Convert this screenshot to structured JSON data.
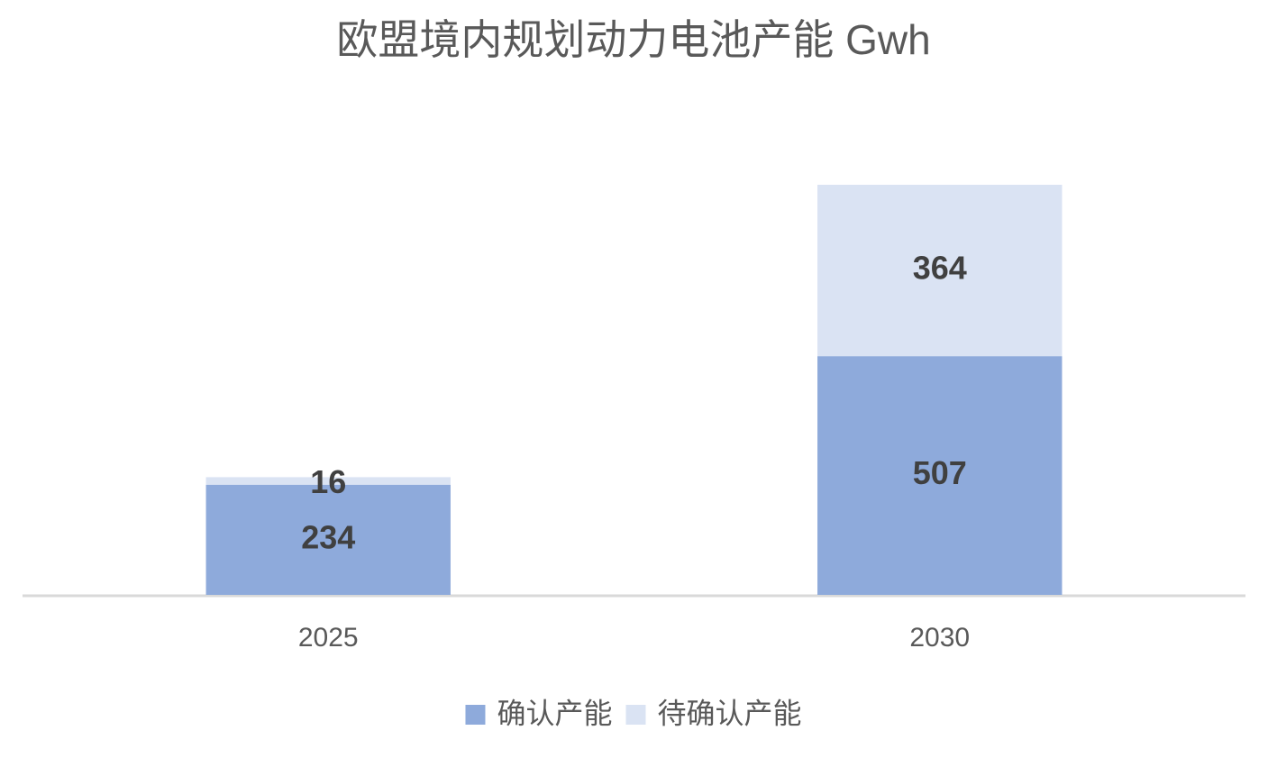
{
  "chart_data": {
    "type": "stacked_bar",
    "title": "欧盟境内规划动力电池产能 Gwh",
    "categories": [
      "2025",
      "2030"
    ],
    "series": [
      {
        "name": "确认产能",
        "color": "#8eaadb",
        "values": [
          234,
          507
        ]
      },
      {
        "name": "待确认产能",
        "color": "#dae3f3",
        "values": [
          16,
          364
        ]
      }
    ],
    "legend": "bottom"
  }
}
